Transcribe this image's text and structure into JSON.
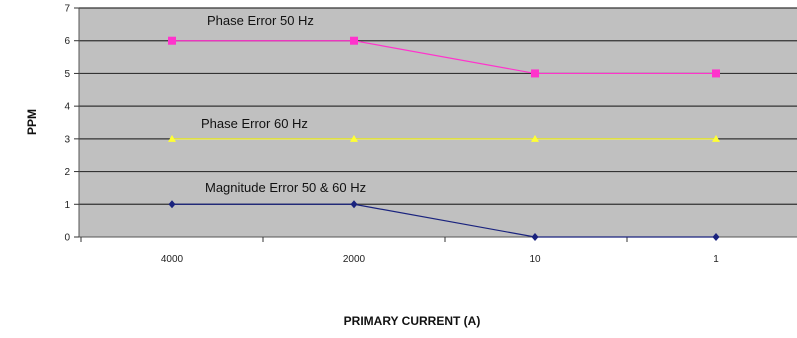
{
  "chart_data": {
    "type": "line",
    "categories": [
      "4000",
      "2000",
      "10",
      "1"
    ],
    "series": [
      {
        "name": "Phase Error 50 Hz",
        "values": [
          6,
          6,
          5,
          5
        ],
        "color": "#ff33cc",
        "marker": "square"
      },
      {
        "name": "Phase Error 60 Hz",
        "values": [
          3,
          3,
          3,
          3
        ],
        "color": "#ffff33",
        "marker": "triangle"
      },
      {
        "name": "Magnitude Error 50 & 60 Hz",
        "values": [
          1,
          1,
          0,
          0
        ],
        "color": "#1a237e",
        "marker": "diamond"
      }
    ],
    "xlabel": "PRIMARY CURRENT (A)",
    "ylabel": "PPM",
    "ylim": [
      0,
      7
    ],
    "yticks": [
      "0",
      "1",
      "2",
      "3",
      "4",
      "5",
      "6",
      "7"
    ],
    "grid": true,
    "plot_background": "#c0c0c0",
    "legend": "inline labels above each series"
  }
}
